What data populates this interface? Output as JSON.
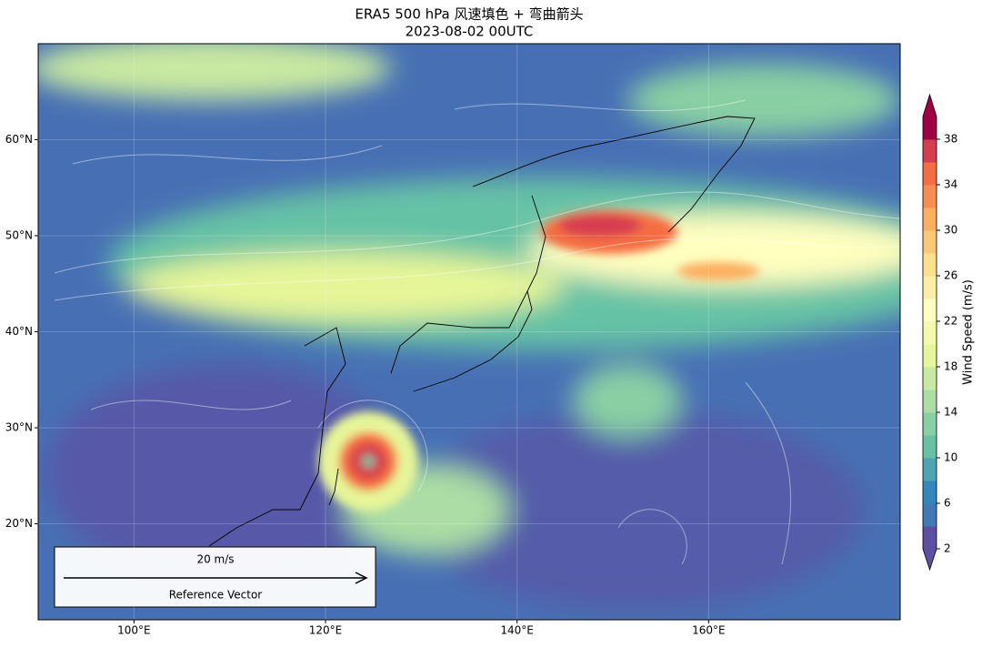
{
  "chart_data": {
    "type": "map",
    "title": "ERA5 500 hPa 风速填色 + 弯曲箭头",
    "subtitle": "2023-08-02 00UTC",
    "xlim": [
      90,
      180
    ],
    "ylim": [
      10,
      70
    ],
    "xticks": [
      {
        "value": 100,
        "label": "100°E"
      },
      {
        "value": 120,
        "label": "120°E"
      },
      {
        "value": 140,
        "label": "140°E"
      },
      {
        "value": 160,
        "label": "160°E"
      }
    ],
    "yticks": [
      {
        "value": 20,
        "label": "20°N"
      },
      {
        "value": 30,
        "label": "30°N"
      },
      {
        "value": 40,
        "label": "40°N"
      },
      {
        "value": 50,
        "label": "50°N"
      },
      {
        "value": 60,
        "label": "60°N"
      }
    ],
    "grid": true,
    "colorbar": {
      "label": "Wind Speed (m/s)",
      "lim": [
        2,
        40
      ],
      "ticks": [
        2,
        6,
        10,
        14,
        18,
        22,
        26,
        30,
        34,
        38
      ],
      "colors": [
        "#5e4fa2",
        "#3f7ab7",
        "#3288bd",
        "#4ca5b1",
        "#66c2a5",
        "#89cfa4",
        "#abdda4",
        "#c8e9a1",
        "#e6f598",
        "#f3faab",
        "#ffffbf",
        "#feeea5",
        "#fee08b",
        "#fdc776",
        "#fdae61",
        "#f88d52",
        "#f46d43",
        "#d53e4f",
        "#9e0142"
      ]
    },
    "reference_vector": {
      "value": 20,
      "label": "20 m/s",
      "name": "Reference Vector"
    }
  }
}
